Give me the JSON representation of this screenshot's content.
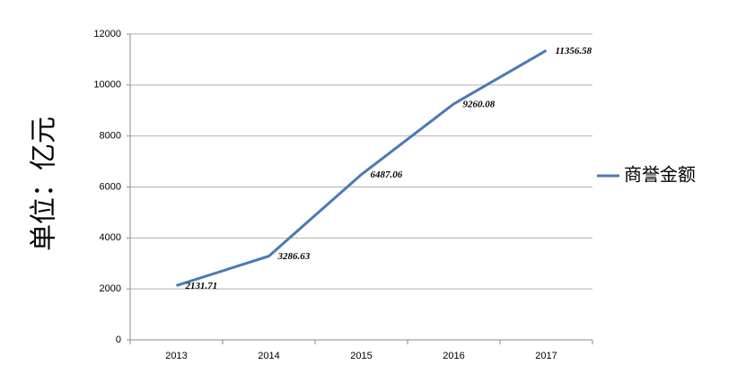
{
  "chart_data": {
    "type": "line",
    "y_label": "单位：亿元",
    "categories": [
      "2013",
      "2014",
      "2015",
      "2016",
      "2017"
    ],
    "series": [
      {
        "name": "商誉金额",
        "color": "#4a7ab5",
        "values": [
          2131.71,
          3286.63,
          6487.06,
          9260.08,
          11356.58
        ]
      }
    ],
    "ylim": [
      0,
      12000
    ],
    "yticks": [
      0,
      2000,
      4000,
      6000,
      8000,
      10000,
      12000
    ],
    "grid": true,
    "legend": "right"
  }
}
